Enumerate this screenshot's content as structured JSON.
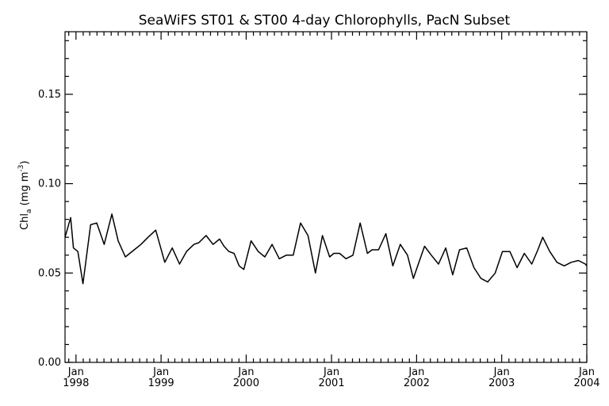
{
  "chart_data": {
    "type": "line",
    "title": "SeaWiFS ST01 & ST00 4-day Chlorophylls, PacN Subset",
    "ylabel_main": "Chl",
    "ylabel_sub": "a",
    "ylabel_units_pre": " (mg m",
    "ylabel_units_sup": "-3",
    "ylabel_units_post": ")",
    "xlabel": "",
    "ylim": [
      0.0,
      0.185
    ],
    "xlim": [
      "1997-11-15",
      "2004-01-01"
    ],
    "y_ticks": [
      {
        "value": 0.0,
        "label": "0.00"
      },
      {
        "value": 0.05,
        "label": "0.05"
      },
      {
        "value": 0.1,
        "label": "0.10"
      },
      {
        "value": 0.15,
        "label": "0.15"
      }
    ],
    "x_ticks": [
      {
        "date": "1998-01-01",
        "month": "Jan",
        "year": "1998"
      },
      {
        "date": "1999-01-01",
        "month": "Jan",
        "year": "1999"
      },
      {
        "date": "2000-01-01",
        "month": "Jan",
        "year": "2000"
      },
      {
        "date": "2001-01-01",
        "month": "Jan",
        "year": "2001"
      },
      {
        "date": "2002-01-01",
        "month": "Jan",
        "year": "2002"
      },
      {
        "date": "2003-01-01",
        "month": "Jan",
        "year": "2003"
      },
      {
        "date": "2004-01-01",
        "month": "Jan",
        "year": "2004"
      }
    ],
    "grid": false,
    "series": [
      {
        "x": [
          "1997-11-15",
          "1997-12-09",
          "1997-12-21",
          "1998-01-09",
          "1998-01-31",
          "1998-03-05",
          "1998-03-31",
          "1998-05-02",
          "1998-06-04",
          "1998-07-01",
          "1998-08-01",
          "1998-09-08",
          "1998-10-07",
          "1998-11-06",
          "1998-12-09",
          "1999-01-17",
          "1999-02-18",
          "1999-03-21",
          "1999-04-20",
          "1999-05-22",
          "1999-06-12",
          "1999-07-13",
          "1999-08-12",
          "1999-09-09",
          "1999-09-28",
          "1999-10-19",
          "1999-11-10",
          "1999-12-02",
          "1999-12-22",
          "2000-01-22",
          "2000-02-22",
          "2000-03-21",
          "2000-04-21",
          "2000-05-22",
          "2000-06-21",
          "2000-07-21",
          "2000-08-21",
          "2000-09-22",
          "2000-10-24",
          "2000-11-23",
          "2000-12-24",
          "2001-01-11",
          "2001-02-05",
          "2001-03-04",
          "2001-04-03",
          "2001-05-04",
          "2001-06-04",
          "2001-06-24",
          "2001-07-22",
          "2001-08-22",
          "2001-09-21",
          "2001-10-23",
          "2001-11-23",
          "2001-12-18",
          "2002-01-11",
          "2002-02-04",
          "2002-03-05",
          "2002-04-05",
          "2002-05-06",
          "2002-06-05",
          "2002-07-04",
          "2002-08-04",
          "2002-09-04",
          "2002-10-04",
          "2002-11-02",
          "2002-12-04",
          "2003-01-04",
          "2003-02-05",
          "2003-03-08",
          "2003-04-08",
          "2003-05-10",
          "2003-06-05",
          "2003-06-26",
          "2003-07-26",
          "2003-08-26",
          "2003-09-26",
          "2003-10-26",
          "2003-11-26",
          "2003-12-26",
          "2004-01-01"
        ],
        "y": [
          0.07,
          0.081,
          0.064,
          0.062,
          0.044,
          0.077,
          0.078,
          0.066,
          0.083,
          0.068,
          0.059,
          0.063,
          0.066,
          0.07,
          0.074,
          0.056,
          0.064,
          0.055,
          0.062,
          0.066,
          0.067,
          0.071,
          0.066,
          0.069,
          0.065,
          0.062,
          0.061,
          0.054,
          0.052,
          0.068,
          0.062,
          0.059,
          0.066,
          0.058,
          0.06,
          0.06,
          0.078,
          0.071,
          0.05,
          0.071,
          0.059,
          0.061,
          0.061,
          0.058,
          0.06,
          0.078,
          0.061,
          0.063,
          0.063,
          0.072,
          0.054,
          0.066,
          0.06,
          0.047,
          0.056,
          0.065,
          0.06,
          0.055,
          0.064,
          0.049,
          0.063,
          0.064,
          0.053,
          0.047,
          0.045,
          0.05,
          0.062,
          0.062,
          0.053,
          0.061,
          0.055,
          0.063,
          0.07,
          0.062,
          0.056,
          0.054,
          0.056,
          0.057,
          0.055,
          0.054
        ]
      }
    ]
  }
}
